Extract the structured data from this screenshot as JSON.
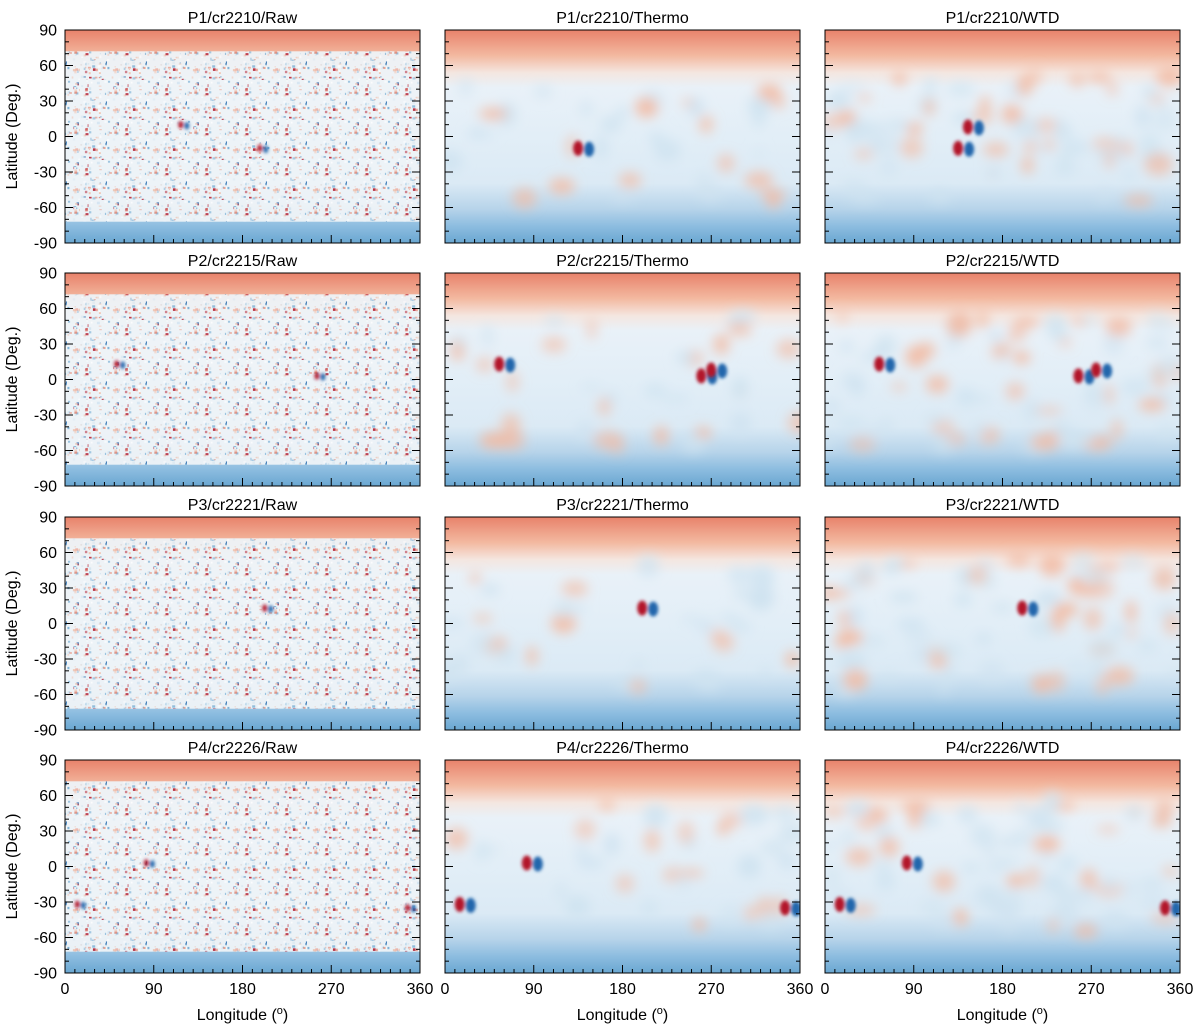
{
  "figure": {
    "ylabel": "Latitude (Deg.)",
    "xlabel_main": "Longitude (",
    "xlabel_sup": "o",
    "xlabel_end": ")"
  },
  "colors": {
    "pos_strong": "#b2182b",
    "pos_mid": "#e8826b",
    "pos_weak": "#f3b9a0",
    "neutral": "#f7f7f7",
    "neg_weak": "#cfe3f0",
    "neg_mid": "#6aa7d1",
    "neg_strong": "#2166ac"
  },
  "chart_data": [
    {
      "type": "heatmap",
      "title": "P1/cr2210/Raw",
      "xlim": [
        0,
        360
      ],
      "ylim": [
        -90,
        90
      ],
      "xticks": [
        0,
        90,
        180,
        270,
        360
      ],
      "yticks": [
        90,
        60,
        30,
        0,
        -30,
        -60,
        -90
      ],
      "xlabel": "",
      "ylabel": "Latitude (Deg.)",
      "features": []
    },
    {
      "type": "heatmap",
      "title": "P1/cr2210/Thermo",
      "xlim": [
        0,
        360
      ],
      "ylim": [
        -90,
        90
      ],
      "xticks": [
        0,
        90,
        180,
        270,
        360
      ],
      "yticks": [
        90,
        60,
        30,
        0,
        -30,
        -60,
        -90
      ],
      "xlabel": "",
      "ylabel": "",
      "features": []
    },
    {
      "type": "heatmap",
      "title": "P1/cr2210/WTD",
      "xlim": [
        0,
        360
      ],
      "ylim": [
        -90,
        90
      ],
      "xticks": [
        0,
        90,
        180,
        270,
        360
      ],
      "yticks": [
        90,
        60,
        30,
        0,
        -30,
        -60,
        -90
      ],
      "xlabel": "",
      "ylabel": "",
      "features": []
    },
    {
      "type": "heatmap",
      "title": "P2/cr2215/Raw",
      "xlim": [
        0,
        360
      ],
      "ylim": [
        -90,
        90
      ],
      "xticks": [
        0,
        90,
        180,
        270,
        360
      ],
      "yticks": [
        90,
        60,
        30,
        0,
        -30,
        -60,
        -90
      ],
      "xlabel": "",
      "ylabel": "Latitude (Deg.)",
      "features": []
    },
    {
      "type": "heatmap",
      "title": "P2/cr2215/Thermo",
      "xlim": [
        0,
        360
      ],
      "ylim": [
        -90,
        90
      ],
      "xticks": [
        0,
        90,
        180,
        270,
        360
      ],
      "yticks": [
        90,
        60,
        30,
        0,
        -30,
        -60,
        -90
      ],
      "xlabel": "",
      "ylabel": "",
      "features": []
    },
    {
      "type": "heatmap",
      "title": "P2/cr2215/WTD",
      "xlim": [
        0,
        360
      ],
      "ylim": [
        -90,
        90
      ],
      "xticks": [
        0,
        90,
        180,
        270,
        360
      ],
      "yticks": [
        90,
        60,
        30,
        0,
        -30,
        -60,
        -90
      ],
      "xlabel": "",
      "ylabel": "",
      "features": []
    },
    {
      "type": "heatmap",
      "title": "P3/cr2221/Raw",
      "xlim": [
        0,
        360
      ],
      "ylim": [
        -90,
        90
      ],
      "xticks": [
        0,
        90,
        180,
        270,
        360
      ],
      "yticks": [
        90,
        60,
        30,
        0,
        -30,
        -60,
        -90
      ],
      "xlabel": "",
      "ylabel": "Latitude (Deg.)",
      "features": []
    },
    {
      "type": "heatmap",
      "title": "P3/cr2221/Thermo",
      "xlim": [
        0,
        360
      ],
      "ylim": [
        -90,
        90
      ],
      "xticks": [
        0,
        90,
        180,
        270,
        360
      ],
      "yticks": [
        90,
        60,
        30,
        0,
        -30,
        -60,
        -90
      ],
      "xlabel": "",
      "ylabel": "",
      "features": []
    },
    {
      "type": "heatmap",
      "title": "P3/cr2221/WTD",
      "xlim": [
        0,
        360
      ],
      "ylim": [
        -90,
        90
      ],
      "xticks": [
        0,
        90,
        180,
        270,
        360
      ],
      "yticks": [
        90,
        60,
        30,
        0,
        -30,
        -60,
        -90
      ],
      "xlabel": "",
      "ylabel": "",
      "features": []
    },
    {
      "type": "heatmap",
      "title": "P4/cr2226/Raw",
      "xlim": [
        0,
        360
      ],
      "ylim": [
        -90,
        90
      ],
      "xticks": [
        0,
        90,
        180,
        270,
        360
      ],
      "yticks": [
        90,
        60,
        30,
        0,
        -30,
        -60,
        -90
      ],
      "xlabel": "Longitude (o)",
      "ylabel": "Latitude (Deg.)",
      "features": []
    },
    {
      "type": "heatmap",
      "title": "P4/cr2226/Thermo",
      "xlim": [
        0,
        360
      ],
      "ylim": [
        -90,
        90
      ],
      "xticks": [
        0,
        90,
        180,
        270,
        360
      ],
      "yticks": [
        90,
        60,
        30,
        0,
        -30,
        -60,
        -90
      ],
      "xlabel": "Longitude (o)",
      "ylabel": "",
      "features": []
    },
    {
      "type": "heatmap",
      "title": "P4/cr2226/WTD",
      "xlim": [
        0,
        360
      ],
      "ylim": [
        -90,
        90
      ],
      "xticks": [
        0,
        90,
        180,
        270,
        360
      ],
      "yticks": [
        90,
        60,
        30,
        0,
        -30,
        -60,
        -90
      ],
      "xlabel": "Longitude (o)",
      "ylabel": "",
      "features": []
    }
  ]
}
